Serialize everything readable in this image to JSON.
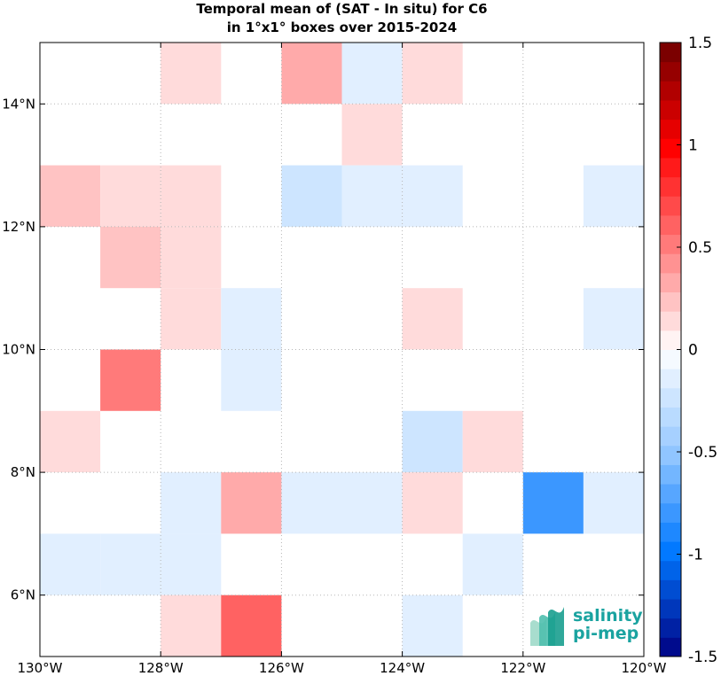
{
  "title_line1": "Temporal mean of (SAT - In situ) for C6",
  "title_line2": "in 1°x1° boxes over 2015-2024",
  "logo": {
    "line1": "salinity",
    "line2": "pi-mep",
    "icon": "waves-logo-icon"
  },
  "chart_data": {
    "type": "heatmap",
    "xlim": [
      -130,
      -120
    ],
    "ylim": [
      5,
      15
    ],
    "x_ticks": [
      {
        "value": -130,
        "label": "130°W"
      },
      {
        "value": -128,
        "label": "128°W"
      },
      {
        "value": -126,
        "label": "126°W"
      },
      {
        "value": -124,
        "label": "124°W"
      },
      {
        "value": -122,
        "label": "122°W"
      },
      {
        "value": -120,
        "label": "120°W"
      }
    ],
    "y_ticks": [
      {
        "value": 6,
        "label": "6°N"
      },
      {
        "value": 8,
        "label": "8°N"
      },
      {
        "value": 10,
        "label": "10°N"
      },
      {
        "value": 12,
        "label": "12°N"
      },
      {
        "value": 14,
        "label": "14°N"
      }
    ],
    "grid": true,
    "colorbar": {
      "clim": [
        -1.5,
        1.5
      ],
      "levels": 32,
      "ticks": [
        {
          "value": 1.5,
          "label": "1.5"
        },
        {
          "value": 1,
          "label": "1"
        },
        {
          "value": 0.5,
          "label": "0.5"
        },
        {
          "value": 0,
          "label": "0"
        },
        {
          "value": -0.5,
          "label": "-0.5"
        },
        {
          "value": -1,
          "label": "-1"
        },
        {
          "value": -1.5,
          "label": "-1.5"
        }
      ]
    },
    "cells": [
      {
        "lon": -128,
        "lat": 14,
        "value": 0.12
      },
      {
        "lon": -126,
        "lat": 14,
        "value": 0.35
      },
      {
        "lon": -125,
        "lat": 14,
        "value": -0.18
      },
      {
        "lon": -124,
        "lat": 14,
        "value": 0.12
      },
      {
        "lon": -125,
        "lat": 13,
        "value": 0.12
      },
      {
        "lon": -130,
        "lat": 12,
        "value": 0.22
      },
      {
        "lon": -129,
        "lat": 12,
        "value": 0.12
      },
      {
        "lon": -128,
        "lat": 12,
        "value": 0.12
      },
      {
        "lon": -126,
        "lat": 12,
        "value": -0.28
      },
      {
        "lon": -125,
        "lat": 12,
        "value": -0.18
      },
      {
        "lon": -124,
        "lat": 12,
        "value": -0.1
      },
      {
        "lon": -121,
        "lat": 12,
        "value": -0.1
      },
      {
        "lon": -129,
        "lat": 11,
        "value": 0.22
      },
      {
        "lon": -128,
        "lat": 11,
        "value": 0.12
      },
      {
        "lon": -128,
        "lat": 10,
        "value": 0.12
      },
      {
        "lon": -127,
        "lat": 10,
        "value": -0.1
      },
      {
        "lon": -124,
        "lat": 10,
        "value": 0.12
      },
      {
        "lon": -121,
        "lat": 10,
        "value": -0.18
      },
      {
        "lon": -129,
        "lat": 9,
        "value": 0.5
      },
      {
        "lon": -127,
        "lat": 9,
        "value": -0.1
      },
      {
        "lon": -130,
        "lat": 8,
        "value": 0.12
      },
      {
        "lon": -124,
        "lat": 8,
        "value": -0.28
      },
      {
        "lon": -123,
        "lat": 8,
        "value": 0.12
      },
      {
        "lon": -128,
        "lat": 7,
        "value": -0.1
      },
      {
        "lon": -127,
        "lat": 7,
        "value": 0.35
      },
      {
        "lon": -126,
        "lat": 7,
        "value": -0.1
      },
      {
        "lon": -125,
        "lat": 7,
        "value": -0.1
      },
      {
        "lon": -124,
        "lat": 7,
        "value": 0.12
      },
      {
        "lon": -122,
        "lat": 7,
        "value": -0.82
      },
      {
        "lon": -121,
        "lat": 7,
        "value": -0.18
      },
      {
        "lon": -130,
        "lat": 6,
        "value": -0.18
      },
      {
        "lon": -129,
        "lat": 6,
        "value": -0.1
      },
      {
        "lon": -128,
        "lat": 6,
        "value": -0.1
      },
      {
        "lon": -123,
        "lat": 6,
        "value": -0.1
      },
      {
        "lon": -128,
        "lat": 5,
        "value": 0.12
      },
      {
        "lon": -127,
        "lat": 5,
        "value": 0.6
      },
      {
        "lon": -124,
        "lat": 5,
        "value": -0.1
      }
    ]
  }
}
